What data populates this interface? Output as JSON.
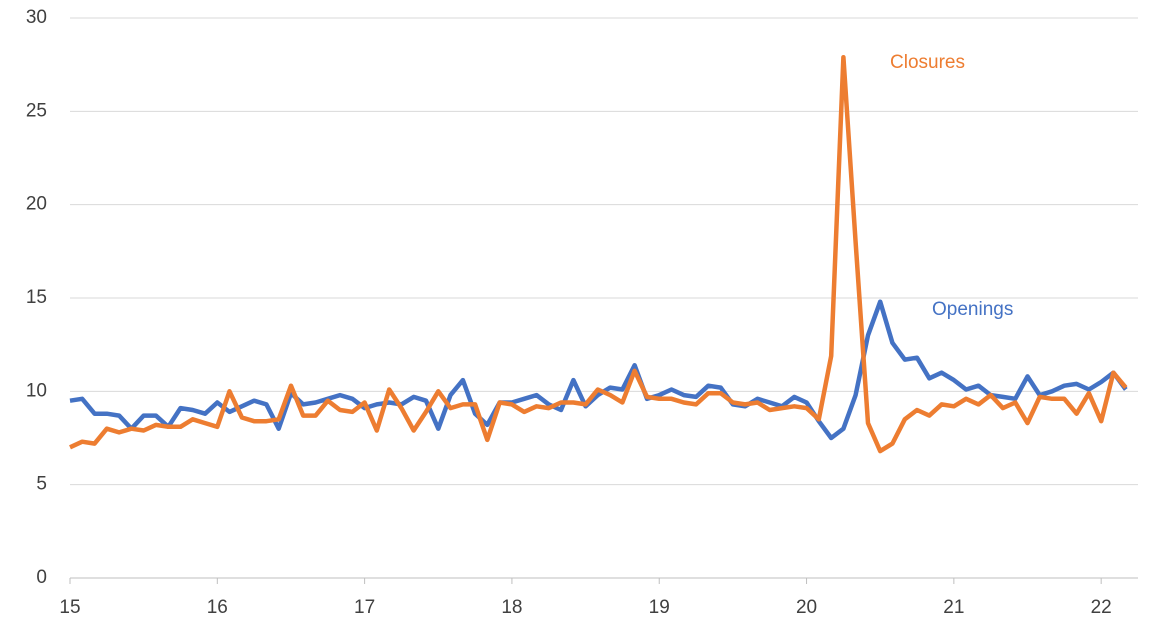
{
  "chart_data": {
    "type": "line",
    "x": [
      15,
      15.083,
      15.167,
      15.25,
      15.333,
      15.417,
      15.5,
      15.583,
      15.667,
      15.75,
      15.833,
      15.917,
      16,
      16.083,
      16.167,
      16.25,
      16.333,
      16.417,
      16.5,
      16.583,
      16.667,
      16.75,
      16.833,
      16.917,
      17,
      17.083,
      17.167,
      17.25,
      17.333,
      17.417,
      17.5,
      17.583,
      17.667,
      17.75,
      17.833,
      17.917,
      18,
      18.083,
      18.167,
      18.25,
      18.333,
      18.417,
      18.5,
      18.583,
      18.667,
      18.75,
      18.833,
      18.917,
      19,
      19.083,
      19.167,
      19.25,
      19.333,
      19.417,
      19.5,
      19.583,
      19.667,
      19.75,
      19.833,
      19.917,
      20,
      20.083,
      20.167,
      20.25,
      20.333,
      20.417,
      20.5,
      20.583,
      20.667,
      20.75,
      20.833,
      20.917,
      21,
      21.083,
      21.167,
      21.25,
      21.333,
      21.417,
      21.5,
      21.583,
      21.667,
      21.75,
      21.833,
      21.917,
      22,
      22.083,
      22.167
    ],
    "series": [
      {
        "name": "Openings",
        "color": "#4472c4",
        "values": [
          9.5,
          9.6,
          8.8,
          8.8,
          8.7,
          8.0,
          8.7,
          8.7,
          8.1,
          9.1,
          9.0,
          8.8,
          9.4,
          8.9,
          9.2,
          9.5,
          9.3,
          8.0,
          9.9,
          9.3,
          9.4,
          9.6,
          9.8,
          9.6,
          9.1,
          9.3,
          9.4,
          9.3,
          9.7,
          9.5,
          8.0,
          9.8,
          10.6,
          8.8,
          8.2,
          9.4,
          9.4,
          9.6,
          9.8,
          9.3,
          9.0,
          10.6,
          9.2,
          9.8,
          10.2,
          10.1,
          11.4,
          9.6,
          9.8,
          10.1,
          9.8,
          9.7,
          10.3,
          10.2,
          9.3,
          9.2,
          9.6,
          9.4,
          9.2,
          9.7,
          9.4,
          8.4,
          7.5,
          8.0,
          9.8,
          13.0,
          14.8,
          12.6,
          11.7,
          11.8,
          10.7,
          11.0,
          10.6,
          10.1,
          10.3,
          9.8,
          9.7,
          9.6,
          10.8,
          9.8,
          10.0,
          10.3,
          10.4,
          10.1,
          10.5,
          11.0,
          10.1
        ]
      },
      {
        "name": "Closures",
        "color": "#ed7d31",
        "values": [
          7.0,
          7.3,
          7.2,
          8.0,
          7.8,
          8.0,
          7.9,
          8.2,
          8.1,
          8.1,
          8.5,
          8.3,
          8.1,
          10.0,
          8.6,
          8.4,
          8.4,
          8.5,
          10.3,
          8.7,
          8.7,
          9.5,
          9.0,
          8.9,
          9.4,
          7.9,
          10.1,
          9.1,
          7.9,
          8.9,
          10.0,
          9.1,
          9.3,
          9.3,
          7.4,
          9.4,
          9.3,
          8.9,
          9.2,
          9.1,
          9.4,
          9.4,
          9.3,
          10.1,
          9.8,
          9.4,
          11.1,
          9.7,
          9.6,
          9.6,
          9.4,
          9.3,
          9.9,
          9.9,
          9.4,
          9.3,
          9.4,
          9.0,
          9.1,
          9.2,
          9.1,
          8.5,
          11.9,
          27.9,
          18.0,
          8.3,
          6.8,
          7.2,
          8.5,
          9.0,
          8.7,
          9.3,
          9.2,
          9.6,
          9.3,
          9.8,
          9.1,
          9.4,
          8.3,
          9.7,
          9.6,
          9.6,
          8.8,
          9.9,
          8.4,
          11.0,
          10.2
        ]
      }
    ],
    "xlim": [
      15,
      22.25
    ],
    "xticks": [
      15,
      16,
      17,
      18,
      19,
      20,
      21,
      22
    ],
    "ylim": [
      0,
      30
    ],
    "yticks": [
      0,
      5,
      10,
      15,
      20,
      25,
      30
    ],
    "grid": true
  }
}
